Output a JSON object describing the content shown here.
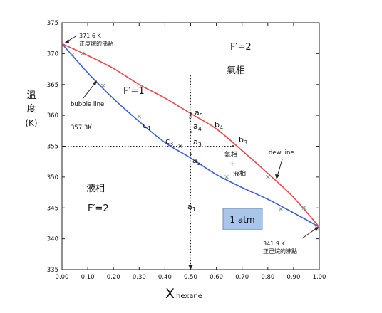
{
  "chart_data": {
    "type": "line",
    "x_range": [
      0.0,
      1.0
    ],
    "y_range": [
      335,
      375
    ],
    "x_ticks": [
      "0.00",
      "0.10",
      "0.20",
      "0.30",
      "0.40",
      "0.50",
      "0.60",
      "0.70",
      "0.80",
      "0.90",
      "1.00"
    ],
    "y_ticks": [
      "335",
      "340",
      "345",
      "350",
      "355",
      "360",
      "365",
      "370",
      "375"
    ],
    "ylabel_lines": [
      "溫",
      "度",
      "(K)"
    ],
    "xlabel_main": "X",
    "xlabel_sub": "hexane",
    "series": [
      {
        "name": "bubble line",
        "color": "#3b5bdb",
        "x": [
          0.0,
          0.1,
          0.2,
          0.3,
          0.4,
          0.5,
          0.6,
          0.7,
          0.8,
          0.9,
          1.0
        ],
        "y": [
          371.6,
          366.9,
          362.7,
          359.0,
          355.6,
          353.1,
          350.4,
          348.3,
          346.4,
          344.2,
          341.9
        ]
      },
      {
        "name": "dew line",
        "color": "#e8474a",
        "x": [
          0.0,
          0.1,
          0.2,
          0.3,
          0.4,
          0.5,
          0.6,
          0.7,
          0.8,
          0.9,
          1.0
        ],
        "y": [
          371.6,
          369.7,
          367.6,
          365.0,
          362.8,
          360.3,
          357.8,
          354.3,
          350.6,
          346.7,
          341.9
        ]
      }
    ],
    "markers": [
      {
        "x": 0.04,
        "y": 369.8
      },
      {
        "x": 0.08,
        "y": 370.0
      },
      {
        "x": 0.16,
        "y": 364.8
      },
      {
        "x": 0.3,
        "y": 365.0
      },
      {
        "x": 0.3,
        "y": 359.8
      },
      {
        "x": 0.46,
        "y": 355.0
      },
      {
        "x": 0.5,
        "y": 359.8
      },
      {
        "x": 0.64,
        "y": 350.0
      },
      {
        "x": 0.8,
        "y": 350.0
      },
      {
        "x": 0.85,
        "y": 344.8
      },
      {
        "x": 0.94,
        "y": 345.0
      },
      {
        "x": 0.99,
        "y": 341.8
      }
    ],
    "guide_lines": {
      "vertical_x": 0.5,
      "horizontal_y": [
        357.3,
        355.0
      ]
    },
    "region_labels": {
      "vapor_phase": "氣相",
      "liquid_phase": "液相",
      "f_vapor": "F′=2",
      "f_liquid": "F′=2",
      "f_two_phase": "F′=1",
      "two_phase_line1": "氣相",
      "two_phase_plus": "+",
      "two_phase_line2": "液相"
    },
    "annotations": {
      "top_point_value": "371.6 K",
      "top_point_desc": "正庚烷的沸點",
      "bottom_point_value": "341.9 K",
      "bottom_point_desc": "正己烷的沸點",
      "bubble_line": "bubble line",
      "dew_line": "dew line",
      "temp_marker": "357.3K",
      "pressure_box": "1 atm",
      "a1": "a1",
      "a2": "a2",
      "a3": "a3",
      "a4": "a4",
      "a5": "a5",
      "b3": "b3",
      "b4": "b4",
      "c3": "c3",
      "c4": "c4"
    }
  }
}
